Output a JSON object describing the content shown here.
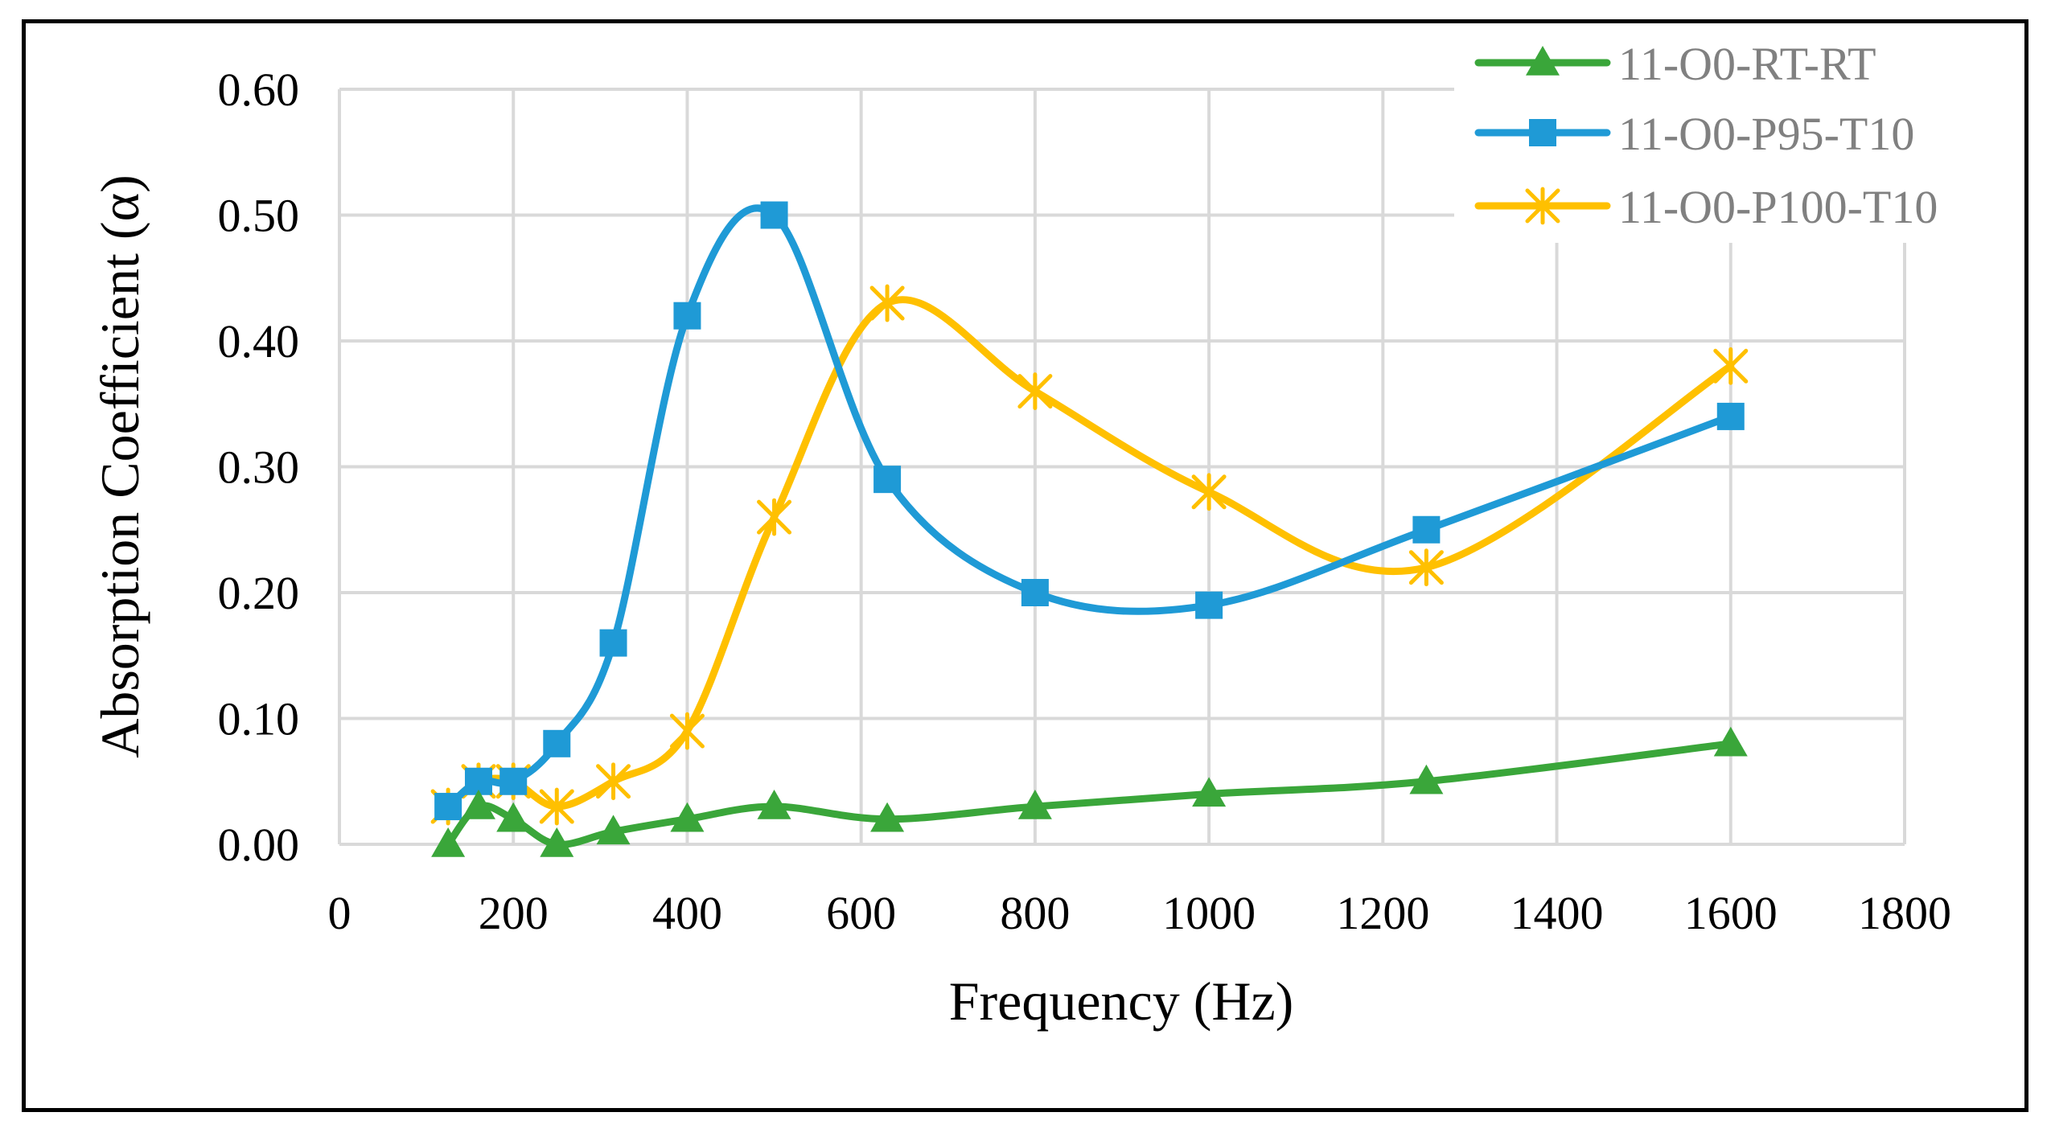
{
  "chart_data": {
    "type": "line",
    "title": "",
    "xlabel": "Frequency (Hz)",
    "ylabel": "Absorption Coefficient (α)",
    "xlim": [
      0,
      1800
    ],
    "ylim": [
      0,
      0.6
    ],
    "xticks": [
      0,
      200,
      400,
      600,
      800,
      1000,
      1200,
      1400,
      1600,
      1800
    ],
    "xtick_labels": [
      "0",
      "200",
      "400",
      "600",
      "800",
      "1000",
      "1200",
      "1400",
      "1600",
      "1800"
    ],
    "yticks": [
      0,
      0.1,
      0.2,
      0.3,
      0.4,
      0.5,
      0.6
    ],
    "ytick_labels": [
      "0.00",
      "0.10",
      "0.20",
      "0.30",
      "0.40",
      "0.50",
      "0.60"
    ],
    "grid": true,
    "legend_position": "top-right",
    "series": [
      {
        "name": "11-O0-RT-RT",
        "color": "#3aa63a",
        "marker": "triangle",
        "x": [
          125,
          160,
          200,
          250,
          315,
          400,
          500,
          630,
          800,
          1000,
          1250,
          1600
        ],
        "y": [
          0.0,
          0.03,
          0.02,
          0.0,
          0.01,
          0.02,
          0.03,
          0.02,
          0.03,
          0.04,
          0.05,
          0.08
        ]
      },
      {
        "name": "11-O0-P95-T10",
        "color": "#1f9ad6",
        "marker": "square",
        "x": [
          125,
          160,
          200,
          250,
          315,
          400,
          500,
          630,
          800,
          1000,
          1250,
          1600
        ],
        "y": [
          0.03,
          0.05,
          0.05,
          0.08,
          0.16,
          0.42,
          0.5,
          0.29,
          0.2,
          0.19,
          0.25,
          0.34
        ]
      },
      {
        "name": "11-O0-P100-T10",
        "color": "#ffc000",
        "marker": "star",
        "x": [
          125,
          160,
          200,
          250,
          315,
          400,
          500,
          630,
          800,
          1000,
          1250,
          1600
        ],
        "y": [
          0.03,
          0.05,
          0.05,
          0.03,
          0.05,
          0.09,
          0.26,
          0.43,
          0.36,
          0.28,
          0.22,
          0.38
        ]
      }
    ]
  }
}
